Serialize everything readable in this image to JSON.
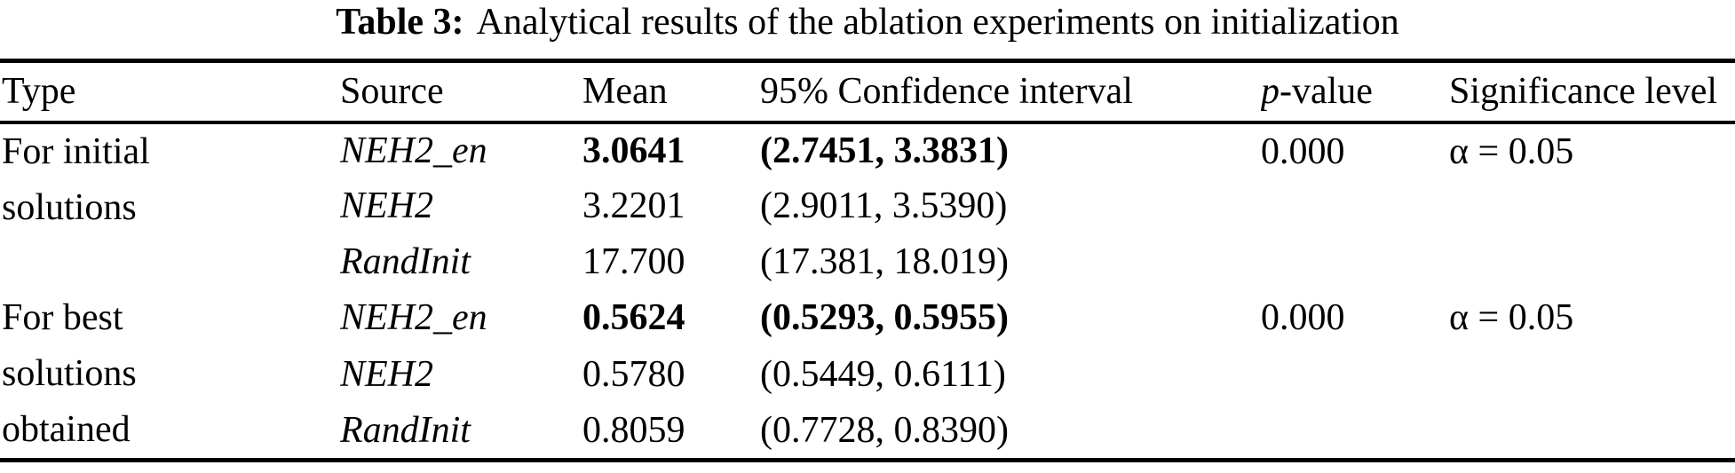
{
  "page": {
    "background": "#ffffff",
    "text_color": "#000000"
  },
  "caption": {
    "label": "Table 3:",
    "text": "Analytical results of the ablation experiments on initialization"
  },
  "table": {
    "headers": {
      "type": "Type",
      "source": "Source",
      "mean": "Mean",
      "ci": "95% Confidence interval",
      "p_value_prefix": "p",
      "p_value_suffix": "-value",
      "significance": "Significance level"
    },
    "groups": [
      {
        "type_lines": [
          "For initial",
          "solutions"
        ],
        "p_value": "0.000",
        "significance": "α = 0.05",
        "rows": [
          {
            "source": "NEH2_en",
            "mean": "3.0641",
            "ci": "(2.7451, 3.3831)",
            "emphasis": "bold"
          },
          {
            "source": "NEH2",
            "mean": "3.2201",
            "ci": "(2.9011, 3.5390)",
            "emphasis": "normal"
          },
          {
            "source": "RandInit",
            "mean": "17.700",
            "ci": "(17.381, 18.019)",
            "emphasis": "normal"
          }
        ]
      },
      {
        "type_lines": [
          "For best",
          "solutions",
          "obtained"
        ],
        "p_value": "0.000",
        "significance": "α = 0.05",
        "rows": [
          {
            "source": "NEH2_en",
            "mean": "0.5624",
            "ci": "(0.5293, 0.5955)",
            "emphasis": "bold"
          },
          {
            "source": "NEH2",
            "mean": "0.5780",
            "ci": "(0.5449, 0.6111)",
            "emphasis": "normal"
          },
          {
            "source": "RandInit",
            "mean": "0.8059",
            "ci": "(0.7728, 0.8390)",
            "emphasis": "normal"
          }
        ]
      }
    ]
  }
}
